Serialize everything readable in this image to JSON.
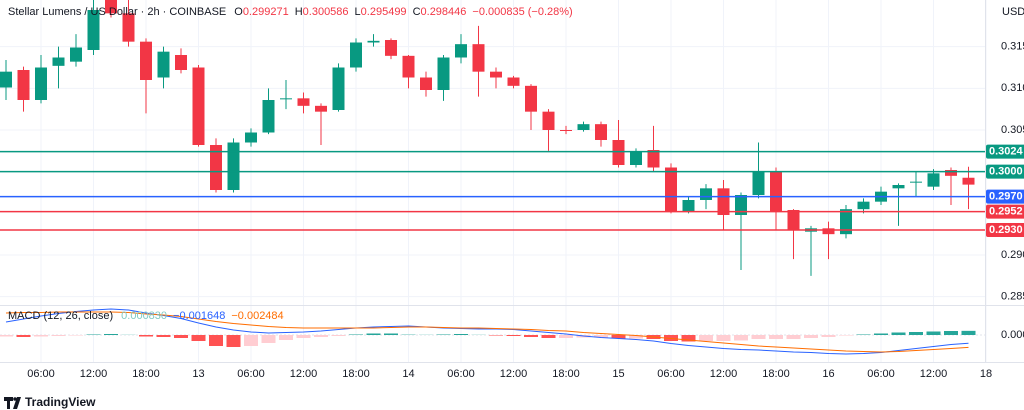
{
  "chart_data": [
    {
      "type": "candlestick",
      "title": "Stellar Lumens / US Dollar · 2h · COINBASE",
      "ohlc_labels": [
        "O",
        "H",
        "L",
        "C"
      ],
      "change_label": "−0.000835 (−0.28%)",
      "currency": "USD",
      "branding": "TradingView",
      "up_color": "#089981",
      "down_color": "#f23645",
      "categories": [
        null,
        null,
        "06:00",
        null,
        null,
        "12:00",
        null,
        null,
        "18:00",
        null,
        null,
        "13",
        null,
        null,
        "06:00",
        null,
        null,
        "12:00",
        null,
        null,
        "18:00",
        null,
        null,
        "14",
        null,
        null,
        "06:00",
        null,
        null,
        "12:00",
        null,
        null,
        "18:00",
        null,
        null,
        "15",
        null,
        null,
        "06:00",
        null,
        null,
        "12:00",
        null,
        null,
        "18:00",
        null,
        null,
        "16",
        null,
        null,
        "06:00",
        null,
        null,
        "12:00",
        null,
        null,
        "18"
      ],
      "open": [
        0.3101,
        0.3122,
        0.3086,
        0.3127,
        0.3132,
        0.3146,
        0.3215,
        0.319,
        0.3156,
        0.3113,
        0.314,
        0.3125,
        0.3032,
        0.2978,
        0.3035,
        0.3047,
        0.3087,
        0.3088,
        0.3079,
        0.3074,
        0.3125,
        0.3155,
        0.3158,
        0.3139,
        0.3113,
        0.3098,
        0.3137,
        0.3153,
        0.312,
        0.3113,
        0.3103,
        0.3072,
        0.305,
        0.305,
        0.3057,
        0.3038,
        0.3008,
        0.3026,
        0.3005,
        0.2952,
        0.2966,
        0.298,
        0.2948,
        0.2972,
        0.3,
        0.2954,
        0.2928,
        0.2932,
        0.2925,
        0.2955,
        0.2964,
        0.298,
        0.2987,
        0.2982,
        0.3002,
        0.299271,
        null
      ],
      "high": [
        0.3134,
        0.3126,
        0.314,
        0.315,
        0.3165,
        0.3206,
        0.3225,
        0.321,
        0.316,
        0.315,
        0.3148,
        0.3128,
        0.304,
        0.304,
        0.3052,
        0.31,
        0.311,
        0.3095,
        0.3082,
        0.313,
        0.316,
        0.3165,
        0.316,
        0.314,
        0.312,
        0.314,
        0.3165,
        0.3175,
        0.3125,
        0.3115,
        0.3105,
        0.3075,
        0.3055,
        0.306,
        0.306,
        0.3062,
        0.3028,
        0.3055,
        0.301,
        0.297,
        0.2985,
        0.299,
        0.2975,
        0.3035,
        0.3005,
        0.2955,
        0.2935,
        0.294,
        0.296,
        0.2968,
        0.2982,
        0.2986,
        0.3,
        0.3003,
        0.3005,
        0.300586,
        null
      ],
      "low": [
        0.3086,
        0.3072,
        0.3082,
        0.31,
        0.3126,
        0.314,
        0.3185,
        0.315,
        0.307,
        0.31,
        0.3118,
        0.303,
        0.2975,
        0.2975,
        0.303,
        0.3045,
        0.3075,
        0.307,
        0.3032,
        0.3072,
        0.312,
        0.315,
        0.3135,
        0.31,
        0.309,
        0.3085,
        0.313,
        0.309,
        0.31,
        0.31,
        0.305,
        0.3025,
        0.3045,
        0.3048,
        0.303,
        0.3005,
        0.3005,
        0.3,
        0.295,
        0.295,
        0.2955,
        0.293,
        0.2882,
        0.2968,
        0.293,
        0.2895,
        0.2875,
        0.2895,
        0.292,
        0.295,
        0.296,
        0.2935,
        0.297,
        0.2978,
        0.296,
        0.295499,
        null
      ],
      "close": [
        0.312,
        0.3086,
        0.3125,
        0.3137,
        0.3149,
        0.3194,
        0.319,
        0.3156,
        0.311,
        0.3144,
        0.3122,
        0.3032,
        0.2978,
        0.3035,
        0.3047,
        0.3086,
        0.3088,
        0.3079,
        0.3072,
        0.3125,
        0.3155,
        0.3157,
        0.3139,
        0.3113,
        0.3098,
        0.3137,
        0.3153,
        0.312,
        0.3113,
        0.3103,
        0.3072,
        0.305,
        0.3049,
        0.3057,
        0.3038,
        0.3008,
        0.3024,
        0.3005,
        0.2952,
        0.2966,
        0.298,
        0.2948,
        0.2972,
        0.3,
        0.2952,
        0.293,
        0.2932,
        0.2925,
        0.2955,
        0.2964,
        0.2976,
        0.2984,
        0.2988,
        0.2998,
        0.2995,
        0.298446,
        null
      ],
      "ylim": [
        0.284,
        0.3206
      ],
      "yticks": [
        {
          "value": 0.315,
          "label": "0.3150"
        },
        {
          "value": 0.31,
          "label": "0.3100"
        },
        {
          "value": 0.305,
          "label": "0.3050"
        },
        {
          "value": 0.29,
          "label": "0.2900"
        },
        {
          "value": 0.285,
          "label": "0.2850"
        }
      ],
      "levels": [
        {
          "value": 0.3024,
          "label": "0.3024",
          "color": "#089981"
        },
        {
          "value": 0.3,
          "label": "0.3000",
          "color": "#089981"
        },
        {
          "value": 0.297,
          "label": "0.2970",
          "color": "#2962ff"
        },
        {
          "value": 0.2952,
          "label": "0.2952",
          "color": "#f23645"
        },
        {
          "value": 0.293,
          "label": "0.2930",
          "color": "#f23645"
        }
      ],
      "grid": true
    },
    {
      "type": "macd",
      "title": "MACD (12, 26, close)",
      "legend_values": [
        {
          "value": 0.00083,
          "label": "0.000830",
          "color": "#80cbc4"
        },
        {
          "value": -0.001648,
          "label": "−0.001648",
          "color": "#2962ff"
        },
        {
          "value": -0.002484,
          "label": "−0.002484",
          "color": "#ff6d00"
        }
      ],
      "histogram": [
        -0.0003,
        -0.0004,
        -0.0003,
        -0.0002,
        -0.0001,
        0.0001,
        0.0002,
        0.0001,
        -0.0003,
        -0.0004,
        -0.0006,
        -0.0012,
        -0.0022,
        -0.0024,
        -0.0022,
        -0.0016,
        -0.001,
        -0.0006,
        -0.0004,
        -0.0002,
        0.0001,
        0.0003,
        0.0003,
        0.0002,
        0.0001,
        0.0001,
        0.0002,
        0.0001,
        -0.0001,
        -0.0002,
        -0.0004,
        -0.0006,
        -0.0006,
        -0.0005,
        -0.0005,
        -0.0007,
        -0.0007,
        -0.0008,
        -0.0012,
        -0.0013,
        -0.0012,
        -0.0012,
        -0.0011,
        -0.0008,
        -0.0008,
        -0.0008,
        -0.0006,
        -0.0004,
        -0.0001,
        0.0001,
        0.0003,
        0.0005,
        0.0006,
        0.0007,
        0.0008,
        0.00083,
        null
      ],
      "histogram_colors": [
        "#26a69a",
        "#b2dfdb",
        "#ffcdd2",
        "#ff5252"
      ],
      "series": [
        {
          "color": "#2962ff",
          "values": [
            0.0026,
            0.0032,
            0.0038,
            0.0043,
            0.0047,
            0.005,
            0.0052,
            0.005,
            0.0044,
            0.0039,
            0.0033,
            0.0024,
            0.0016,
            0.001,
            0.0006,
            0.0004,
            0.0005,
            0.0006,
            0.0008,
            0.0011,
            0.0014,
            0.0016,
            0.0017,
            0.0018,
            0.0016,
            0.0014,
            0.0013,
            0.0012,
            0.0012,
            0.0011,
            0.0008,
            0.0005,
            0.0002,
            -0.0002,
            -0.0005,
            -0.0007,
            -0.0009,
            -0.0012,
            -0.0017,
            -0.0021,
            -0.0024,
            -0.0027,
            -0.0029,
            -0.003,
            -0.0032,
            -0.0034,
            -0.0035,
            -0.0037,
            -0.0038,
            -0.0037,
            -0.0035,
            -0.0031,
            -0.0027,
            -0.0023,
            -0.0019,
            -0.001648,
            null
          ]
        },
        {
          "color": "#ff6d00",
          "values": [
            0.0044,
            0.0045,
            0.0045,
            0.0046,
            0.0046,
            0.0046,
            0.0046,
            0.0045,
            0.0042,
            0.004,
            0.0037,
            0.0032,
            0.0027,
            0.0023,
            0.002,
            0.0017,
            0.0015,
            0.0014,
            0.0014,
            0.0014,
            0.0014,
            0.0014,
            0.0015,
            0.0016,
            0.0016,
            0.0015,
            0.0014,
            0.0014,
            0.0013,
            0.0012,
            0.0011,
            0.0009,
            0.0008,
            0.0005,
            0.0003,
            0.0001,
            -0.0001,
            -0.0004,
            -0.0007,
            -0.001,
            -0.0013,
            -0.0016,
            -0.0019,
            -0.0022,
            -0.0024,
            -0.0026,
            -0.0028,
            -0.003,
            -0.0032,
            -0.0033,
            -0.0034,
            -0.0033,
            -0.0031,
            -0.0029,
            -0.0027,
            -0.002484,
            null
          ]
        }
      ],
      "ylim": [
        -0.0054,
        0.006
      ],
      "yticks": [
        {
          "value": 0,
          "label": "0.0000"
        }
      ]
    }
  ]
}
